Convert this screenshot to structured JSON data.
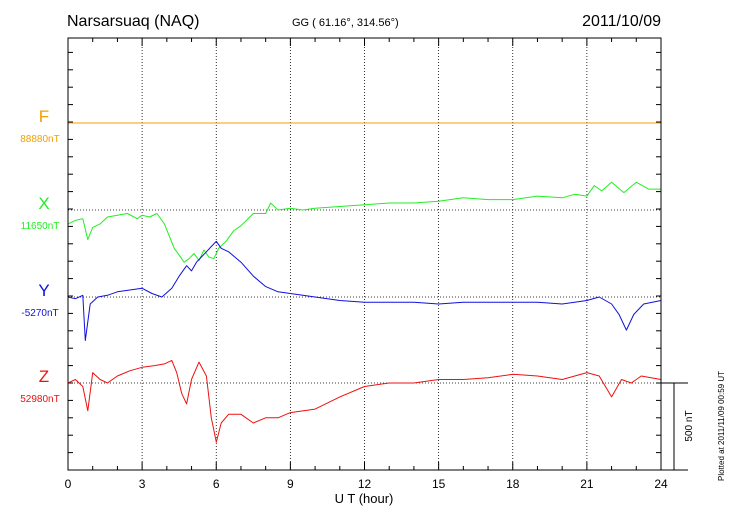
{
  "header": {
    "station": "Narsarsuaq (NAQ)",
    "coords": "GG ( 61.16°, 314.56°)",
    "date": "2011/10/09"
  },
  "plotted_note": "Plotted at 2011/11/09 00:59 UT",
  "scale_label": "500 nT",
  "chart_data": {
    "type": "line",
    "title": "Narsarsuaq (NAQ)",
    "xlabel": "U T (hour)",
    "ylabel": "",
    "xlim": [
      0,
      24
    ],
    "x_ticks": [
      "0",
      "3",
      "6",
      "9",
      "12",
      "15",
      "18",
      "21",
      "24"
    ],
    "grid": true,
    "series": [
      {
        "name": "F",
        "baseline_label": "88880nT",
        "color": "#f0a000",
        "x": [
          0,
          1,
          2,
          3,
          4,
          5,
          6,
          7,
          8,
          9,
          10,
          11,
          12,
          13,
          14,
          15,
          16,
          17,
          18,
          19,
          20,
          21,
          22,
          23,
          24
        ],
        "y": [
          0,
          0,
          0,
          0,
          0,
          0,
          0,
          0,
          0,
          0,
          0,
          0,
          0,
          0,
          0,
          0,
          0,
          0,
          0,
          0,
          0,
          0,
          0,
          0,
          0
        ]
      },
      {
        "name": "X",
        "baseline_label": "11650nT",
        "color": "#22ee22",
        "x": [
          0,
          0.3,
          0.6,
          0.8,
          1.0,
          1.3,
          1.6,
          2.0,
          2.4,
          2.8,
          3.0,
          3.3,
          3.6,
          3.9,
          4.1,
          4.3,
          4.5,
          4.7,
          4.9,
          5.1,
          5.3,
          5.5,
          5.7,
          5.9,
          6.1,
          6.4,
          6.7,
          7.0,
          7.5,
          8.0,
          8.2,
          8.5,
          9.0,
          9.5,
          10,
          11,
          12,
          13,
          14,
          15,
          16,
          17,
          18,
          19,
          20,
          20.5,
          21,
          21.3,
          21.6,
          22,
          22.5,
          23,
          23.5,
          24
        ],
        "y": [
          -80,
          -60,
          -50,
          -170,
          -100,
          -80,
          -40,
          -30,
          -20,
          -50,
          -30,
          -40,
          -20,
          -80,
          -150,
          -220,
          -260,
          -300,
          -280,
          -250,
          -290,
          -230,
          -270,
          -280,
          -220,
          -180,
          -120,
          -90,
          -20,
          -20,
          40,
          0,
          10,
          0,
          10,
          20,
          30,
          40,
          40,
          50,
          70,
          60,
          60,
          80,
          70,
          90,
          80,
          140,
          110,
          160,
          100,
          160,
          120,
          120
        ]
      },
      {
        "name": "Y",
        "baseline_label": "-5270nT",
        "color": "#1010e0",
        "x": [
          0,
          0.3,
          0.6,
          0.7,
          0.9,
          1.2,
          1.6,
          2.0,
          2.5,
          3.0,
          3.4,
          3.8,
          4.2,
          4.5,
          4.8,
          5.0,
          5.2,
          5.4,
          5.6,
          5.8,
          6.0,
          6.2,
          6.5,
          7.0,
          7.5,
          8.0,
          8.5,
          9.0,
          10,
          11,
          12,
          13,
          14,
          15,
          16,
          17,
          18,
          19,
          20,
          21,
          21.5,
          22,
          22.3,
          22.6,
          22.9,
          23.3,
          24
        ],
        "y": [
          0,
          -10,
          10,
          -250,
          -40,
          0,
          10,
          30,
          40,
          50,
          20,
          0,
          50,
          120,
          180,
          150,
          200,
          230,
          260,
          290,
          320,
          280,
          260,
          200,
          120,
          60,
          30,
          20,
          0,
          -20,
          -30,
          -30,
          -30,
          -40,
          -30,
          -30,
          -30,
          -30,
          -40,
          -20,
          0,
          -40,
          -100,
          -190,
          -100,
          -40,
          -20
        ]
      },
      {
        "name": "Z",
        "baseline_label": "52980nT",
        "color": "#ee1010",
        "x": [
          0,
          0.3,
          0.6,
          0.8,
          1.0,
          1.3,
          1.6,
          2.0,
          2.5,
          3.0,
          3.5,
          3.9,
          4.2,
          4.4,
          4.6,
          4.8,
          5.0,
          5.3,
          5.6,
          5.8,
          6.0,
          6.2,
          6.5,
          7.0,
          7.5,
          8.0,
          8.5,
          9.0,
          10,
          11,
          12,
          13,
          14,
          15,
          16,
          17,
          18,
          19,
          20,
          21,
          21.5,
          22,
          22.4,
          22.8,
          23.2,
          24
        ],
        "y": [
          0,
          20,
          -20,
          -160,
          60,
          20,
          0,
          40,
          70,
          90,
          100,
          110,
          130,
          60,
          -60,
          -120,
          20,
          120,
          40,
          -200,
          -340,
          -230,
          -180,
          -180,
          -230,
          -200,
          -200,
          -170,
          -150,
          -80,
          -20,
          0,
          0,
          20,
          20,
          30,
          50,
          40,
          20,
          60,
          40,
          -80,
          20,
          0,
          40,
          20
        ]
      }
    ]
  }
}
